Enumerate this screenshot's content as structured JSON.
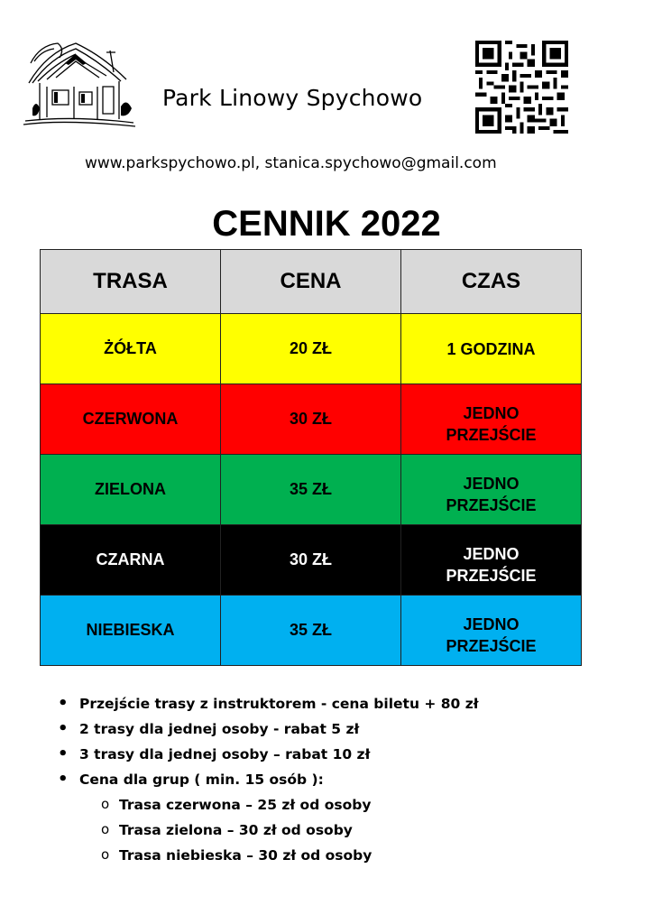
{
  "header": {
    "park_name": "Park Linowy Spychowo",
    "contact": "www.parkspychowo.pl, stanica.spychowo@gmail.com",
    "logo_icon": "house-sketch-icon",
    "qr_icon": "qr-code-icon"
  },
  "title": "CENNIK 2022",
  "table": {
    "headers": [
      "TRASA",
      "CENA",
      "CZAS"
    ],
    "header_color": "#d9d9d9",
    "rows": [
      {
        "route": "ŻÓŁTA",
        "price": "20 ZŁ",
        "time_line1": "1 GODZINA",
        "time_line2": "",
        "bg": "#ffff00",
        "color": "#000000"
      },
      {
        "route": "CZERWONA",
        "price": "30 ZŁ",
        "time_line1": "JEDNO",
        "time_line2": "PRZEJŚCIE",
        "bg": "#ff0000",
        "color": "#000000"
      },
      {
        "route": "ZIELONA",
        "price": "35 ZŁ",
        "time_line1": "JEDNO",
        "time_line2": "PRZEJŚCIE",
        "bg": "#00b050",
        "color": "#000000"
      },
      {
        "route": "CZARNA",
        "price": "30 ZŁ",
        "time_line1": "JEDNO",
        "time_line2": "PRZEJŚCIE",
        "bg": "#000000",
        "color": "#ffffff"
      },
      {
        "route": "NIEBIESKA",
        "price": "35 ZŁ",
        "time_line1": "JEDNO",
        "time_line2": "PRZEJŚCIE",
        "bg": "#00b0f0",
        "color": "#000000"
      }
    ]
  },
  "notes": [
    "Przejście trasy z instruktorem  - cena biletu + 80 zł",
    "2 trasy dla jednej osoby  - rabat  5 zł",
    "3 trasy dla jednej osoby – rabat 10 zł",
    "Cena dla grup ( min. 15 osób ):"
  ],
  "group_prices": [
    "Trasa czerwona – 25 zł od osoby",
    "Trasa zielona – 30 zł od osoby",
    "Trasa niebieska – 30 zł od osoby"
  ]
}
